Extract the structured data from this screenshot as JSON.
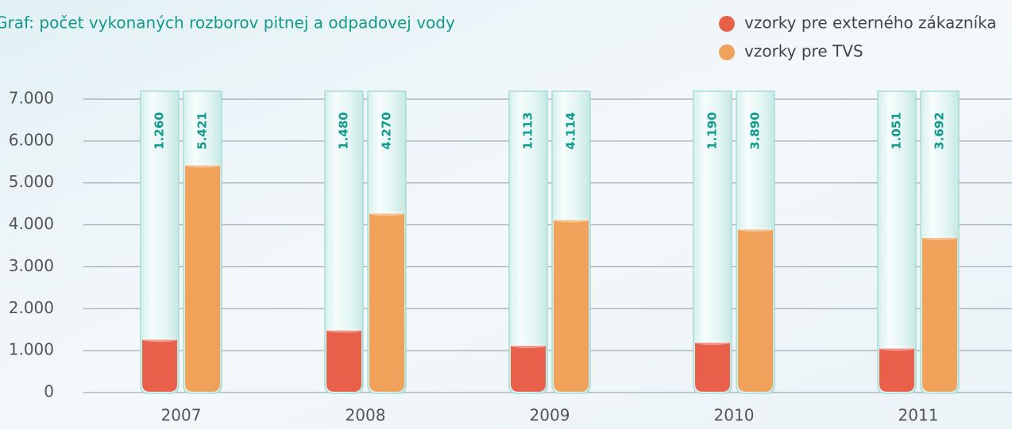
{
  "chart_data": {
    "type": "bar",
    "title": "Graf: počet vykonaných rozborov pitnej a odpadovej vody",
    "categories": [
      "2007",
      "2008",
      "2009",
      "2010",
      "2011"
    ],
    "series": [
      {
        "name": "vzorky pre externého zákazníka",
        "color": "#e8604a",
        "values": [
          1260,
          1480,
          1113,
          1190,
          1051
        ],
        "value_labels": [
          "1.260",
          "1.480",
          "1.113",
          "1.190",
          "1.051"
        ]
      },
      {
        "name": "vzorky pre TVS",
        "color": "#f0a25a",
        "values": [
          5421,
          4270,
          4114,
          3890,
          3692
        ],
        "value_labels": [
          "5.421",
          "4.270",
          "4.114",
          "3.890",
          "3.692"
        ]
      }
    ],
    "ylim": [
      0,
      7000
    ],
    "yticks": [
      0,
      {
        "value": 1000,
        "label": "1.000"
      },
      {
        "value": 2000,
        "label": "2.000"
      },
      {
        "value": 3000,
        "label": "3.000"
      },
      {
        "value": 4000,
        "label": "4.000"
      },
      {
        "value": 5000,
        "label": "5.000"
      },
      {
        "value": 6000,
        "label": "6.000"
      },
      {
        "value": 7000,
        "label": "7.000"
      }
    ],
    "grid": true,
    "legend": "top-right"
  }
}
